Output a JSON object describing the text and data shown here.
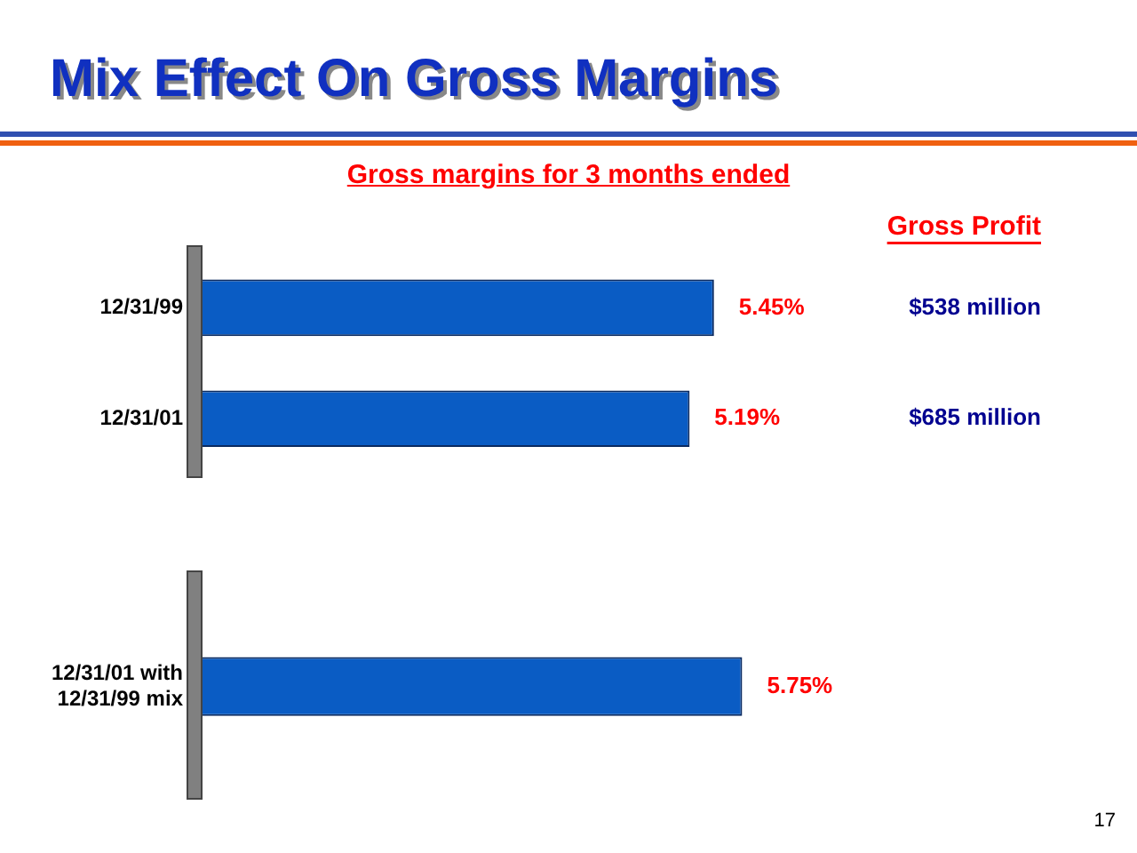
{
  "chart_data": [
    {
      "type": "bar",
      "orientation": "horizontal",
      "title": "Mix Effect On Gross Margins",
      "subtitle": "Gross margins for 3 months ended",
      "categories": [
        "12/31/99",
        "12/31/01"
      ],
      "values": [
        5.45,
        5.19
      ],
      "value_labels": [
        "5.45%",
        "5.19%"
      ],
      "color": "#0a5cc4",
      "tick_labels": "y",
      "annotations": [
        "Gross Profit",
        "$538 million",
        "$685 million"
      ]
    },
    {
      "type": "bar",
      "orientation": "horizontal",
      "categories": [
        "12/31/01 with\n12/31/99 mix"
      ],
      "values": [
        5.75
      ],
      "value_labels": [
        "5.75%"
      ],
      "color": "#0a5cc4",
      "tick_labels": "y",
      "annotations": [
        "17"
      ]
    }
  ]
}
